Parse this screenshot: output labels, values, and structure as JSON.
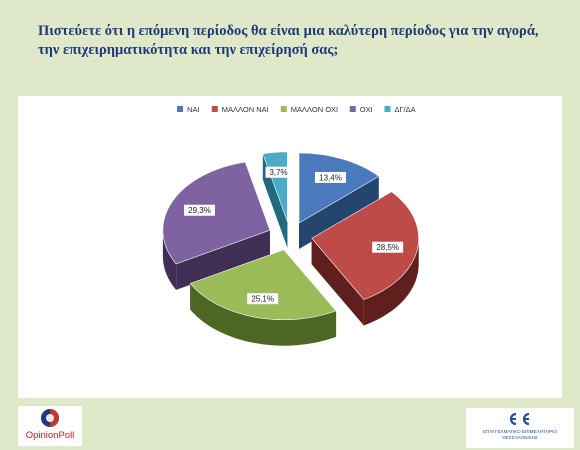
{
  "title": "Πιστεύετε ότι η επόμενη περίοδος θα είναι μια καλύτερη περίοδος για την αγορά, την επιχειρηματικότητα και την επιχείρησή σας;",
  "chart_data": {
    "type": "pie",
    "title": "",
    "categories": [
      "ΝΑΙ",
      "ΜΑΛΛΟΝ ΝΑΙ",
      "ΜΑΛΛΟΝ ΟΧΙ",
      "ΟΧΙ",
      "ΔΓ/ΔΑ"
    ],
    "values": [
      13.4,
      28.5,
      25.1,
      29.3,
      3.7
    ],
    "value_labels": [
      "13,4%",
      "28,5%",
      "25,1%",
      "29,3%",
      "3,7%"
    ],
    "colors": [
      "#4a7abc",
      "#be4b48",
      "#9bbb59",
      "#7e62a1",
      "#4bacc6"
    ],
    "dark_colors": [
      "#24456e",
      "#5f1f1d",
      "#4e6624",
      "#3f2f55",
      "#226a7c"
    ],
    "legend_position": "top",
    "style": "3d-exploded"
  },
  "footer": {
    "left_logo_text": "OpinionPoll",
    "right_logo_lines": [
      "ΕΠΑΓΓΕΛΜΑΤΙΚΟ ΕΠΙΜΕΛΗΤΗΡΙΟ",
      "ΘΕΣΣΑΛΟΝΙΚΗΣ"
    ]
  }
}
